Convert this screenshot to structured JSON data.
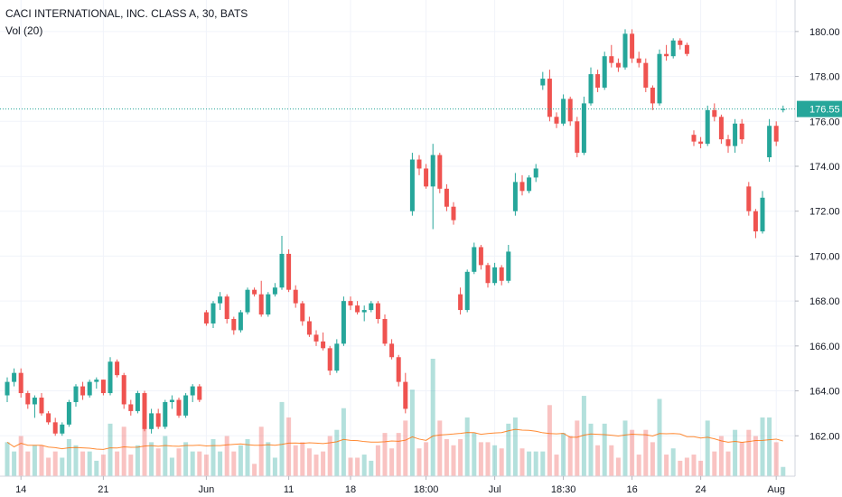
{
  "chart_data": {
    "type": "candlestick",
    "title": "CACI INTERNATIONAL, INC. CLASS A, 30, BATS",
    "indicator_label": "Vol (20)",
    "last_price": 176.55,
    "last_price_label": "176.55",
    "y_ticks": [
      "162.00",
      "164.00",
      "166.00",
      "168.00",
      "170.00",
      "172.00",
      "174.00",
      "176.00",
      "178.00",
      "180.00"
    ],
    "ylim": [
      160.2,
      181.0
    ],
    "x_ticks": [
      {
        "label": "14",
        "index": 2
      },
      {
        "label": "21",
        "index": 14
      },
      {
        "label": "Jun",
        "index": 29
      },
      {
        "label": "11",
        "index": 41
      },
      {
        "label": "18",
        "index": 50
      },
      {
        "label": "18:00",
        "index": 61
      },
      {
        "label": "Jul",
        "index": 71
      },
      {
        "label": "18:30",
        "index": 81
      },
      {
        "label": "16",
        "index": 91
      },
      {
        "label": "24",
        "index": 101
      },
      {
        "label": "Aug",
        "index": 112
      }
    ],
    "candles": [
      [
        163.8,
        164.6,
        163.5,
        164.4
      ],
      [
        164.4,
        165.0,
        164.2,
        164.8
      ],
      [
        164.8,
        165.0,
        163.7,
        163.9
      ],
      [
        163.9,
        164.0,
        163.2,
        163.4
      ],
      [
        163.4,
        163.8,
        162.8,
        163.7
      ],
      [
        163.7,
        163.9,
        162.9,
        163.0
      ],
      [
        163.0,
        163.1,
        162.5,
        162.6
      ],
      [
        162.6,
        162.8,
        162.0,
        162.1
      ],
      [
        162.1,
        162.6,
        162.0,
        162.5
      ],
      [
        162.5,
        163.6,
        162.4,
        163.5
      ],
      [
        163.5,
        164.3,
        163.3,
        164.2
      ],
      [
        164.2,
        164.4,
        163.6,
        163.8
      ],
      [
        163.8,
        164.5,
        163.7,
        164.4
      ],
      [
        164.4,
        164.6,
        164.1,
        164.5
      ],
      [
        164.5,
        164.5,
        163.8,
        163.9
      ],
      [
        163.9,
        165.5,
        163.8,
        165.3
      ],
      [
        165.3,
        165.4,
        164.6,
        164.7
      ],
      [
        164.7,
        164.8,
        163.2,
        163.4
      ],
      [
        163.4,
        163.6,
        162.9,
        163.1
      ],
      [
        163.1,
        164.0,
        163.0,
        163.9
      ],
      [
        163.9,
        164.0,
        162.2,
        162.3
      ],
      [
        162.3,
        163.2,
        162.1,
        163.0
      ],
      [
        163.0,
        163.2,
        162.3,
        162.4
      ],
      [
        162.4,
        163.6,
        162.3,
        163.5
      ],
      [
        163.5,
        163.8,
        163.2,
        163.6
      ],
      [
        163.6,
        163.7,
        162.8,
        162.9
      ],
      [
        162.9,
        163.9,
        162.8,
        163.8
      ],
      [
        163.8,
        164.3,
        163.5,
        164.2
      ],
      [
        164.2,
        164.3,
        163.5,
        163.6
      ],
      [
        167.5,
        167.6,
        166.9,
        167.0
      ],
      [
        167.0,
        168.0,
        166.8,
        167.9
      ],
      [
        167.9,
        168.4,
        167.6,
        168.2
      ],
      [
        168.2,
        168.3,
        167.0,
        167.2
      ],
      [
        167.2,
        167.3,
        166.5,
        166.7
      ],
      [
        166.7,
        167.6,
        166.6,
        167.5
      ],
      [
        167.5,
        168.6,
        167.4,
        168.5
      ],
      [
        168.5,
        168.6,
        168.2,
        168.3
      ],
      [
        168.3,
        168.9,
        167.3,
        167.4
      ],
      [
        167.4,
        168.4,
        167.3,
        168.3
      ],
      [
        168.3,
        168.8,
        168.2,
        168.6
      ],
      [
        168.6,
        170.9,
        168.5,
        170.1
      ],
      [
        170.1,
        170.3,
        168.4,
        168.5
      ],
      [
        168.5,
        168.7,
        167.7,
        167.9
      ],
      [
        167.9,
        168.0,
        166.9,
        167.1
      ],
      [
        167.1,
        167.3,
        166.4,
        166.5
      ],
      [
        166.5,
        166.7,
        166.0,
        166.2
      ],
      [
        166.2,
        166.6,
        165.8,
        165.9
      ],
      [
        165.9,
        166.0,
        164.7,
        164.9
      ],
      [
        164.9,
        166.3,
        164.8,
        166.1
      ],
      [
        166.1,
        168.2,
        166.0,
        168.0
      ],
      [
        168.0,
        168.2,
        167.6,
        167.8
      ],
      [
        167.8,
        168.0,
        167.4,
        167.5
      ],
      [
        167.5,
        167.8,
        167.1,
        167.6
      ],
      [
        167.6,
        168.0,
        167.5,
        167.9
      ],
      [
        167.9,
        168.0,
        167.0,
        167.2
      ],
      [
        167.2,
        167.4,
        166.0,
        166.1
      ],
      [
        166.1,
        166.3,
        165.4,
        165.5
      ],
      [
        165.5,
        165.6,
        164.2,
        164.4
      ],
      [
        164.4,
        164.8,
        163.0,
        163.2
      ],
      [
        172.0,
        174.6,
        171.8,
        174.3
      ],
      [
        174.3,
        174.5,
        173.6,
        173.9
      ],
      [
        173.9,
        174.1,
        173.0,
        173.1
      ],
      [
        173.1,
        175.0,
        171.2,
        174.5
      ],
      [
        174.5,
        174.6,
        172.8,
        173.0
      ],
      [
        173.0,
        173.2,
        172.0,
        172.2
      ],
      [
        172.2,
        172.4,
        171.4,
        171.6
      ],
      [
        168.3,
        168.6,
        167.4,
        167.6
      ],
      [
        167.6,
        169.4,
        167.5,
        169.3
      ],
      [
        169.3,
        170.6,
        169.2,
        170.4
      ],
      [
        170.4,
        170.5,
        169.4,
        169.6
      ],
      [
        169.6,
        169.7,
        168.6,
        168.8
      ],
      [
        168.8,
        169.7,
        168.7,
        169.5
      ],
      [
        169.5,
        169.6,
        168.7,
        168.9
      ],
      [
        168.9,
        170.5,
        168.8,
        170.2
      ],
      [
        172.0,
        173.7,
        171.8,
        173.3
      ],
      [
        173.3,
        173.6,
        172.7,
        172.9
      ],
      [
        172.9,
        173.6,
        172.8,
        173.5
      ],
      [
        173.5,
        174.1,
        173.3,
        173.9
      ],
      [
        177.6,
        178.2,
        177.4,
        177.9
      ],
      [
        177.9,
        178.3,
        176.0,
        176.2
      ],
      [
        176.2,
        176.4,
        175.7,
        175.9
      ],
      [
        175.9,
        177.2,
        175.8,
        177.0
      ],
      [
        177.0,
        177.1,
        175.8,
        176.0
      ],
      [
        176.0,
        176.2,
        174.4,
        174.6
      ],
      [
        174.6,
        177.1,
        174.5,
        176.8
      ],
      [
        176.8,
        178.4,
        176.7,
        178.1
      ],
      [
        178.1,
        178.3,
        177.3,
        177.5
      ],
      [
        177.5,
        179.1,
        177.4,
        178.9
      ],
      [
        178.9,
        179.4,
        178.4,
        178.6
      ],
      [
        178.6,
        178.8,
        178.2,
        178.4
      ],
      [
        178.4,
        180.1,
        178.3,
        179.9
      ],
      [
        179.9,
        180.1,
        178.6,
        178.8
      ],
      [
        178.8,
        179.1,
        178.4,
        178.6
      ],
      [
        178.6,
        178.8,
        177.3,
        177.5
      ],
      [
        177.5,
        177.6,
        176.5,
        176.8
      ],
      [
        176.8,
        179.2,
        176.7,
        179.0
      ],
      [
        179.0,
        179.4,
        178.7,
        178.9
      ],
      [
        178.9,
        179.7,
        178.8,
        179.6
      ],
      [
        179.6,
        179.7,
        179.2,
        179.4
      ],
      [
        179.4,
        179.5,
        178.9,
        179.0
      ],
      [
        175.4,
        175.6,
        174.9,
        175.1
      ],
      [
        175.1,
        175.3,
        174.8,
        175.0
      ],
      [
        175.0,
        176.7,
        174.9,
        176.5
      ],
      [
        176.5,
        176.8,
        176.0,
        176.2
      ],
      [
        176.2,
        176.3,
        175.0,
        175.2
      ],
      [
        175.2,
        175.4,
        174.6,
        174.9
      ],
      [
        174.9,
        176.1,
        174.6,
        175.9
      ],
      [
        175.9,
        176.1,
        175.0,
        175.2
      ],
      [
        173.1,
        173.3,
        171.8,
        172.0
      ],
      [
        172.0,
        172.1,
        170.8,
        171.1
      ],
      [
        171.1,
        172.9,
        171.0,
        172.6
      ],
      [
        174.4,
        176.1,
        174.2,
        175.8
      ],
      [
        175.8,
        176.0,
        174.9,
        175.1
      ],
      [
        176.5,
        176.7,
        176.4,
        176.55
      ]
    ]
  }
}
